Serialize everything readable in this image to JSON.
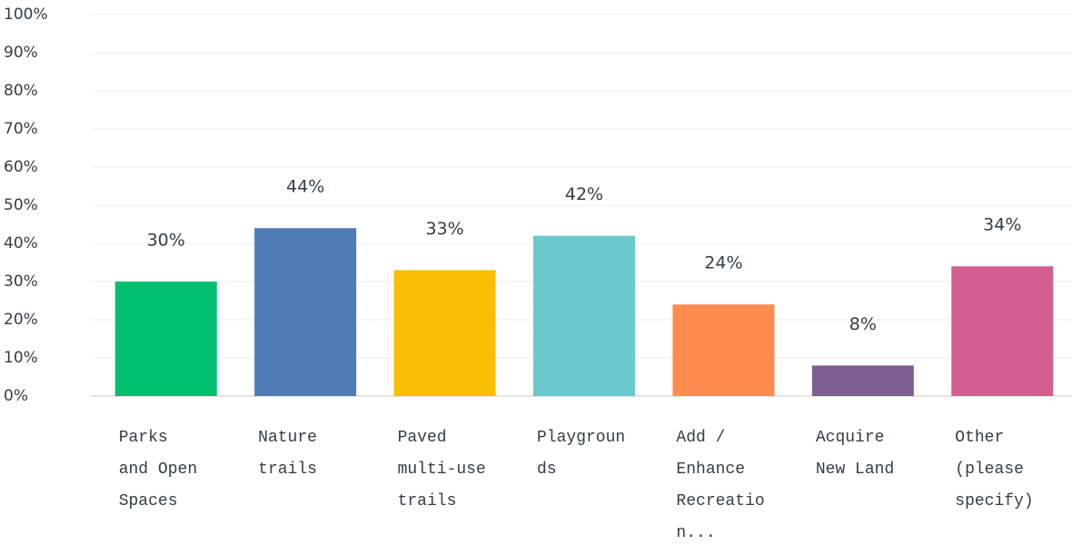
{
  "chart_data": {
    "type": "bar",
    "categories": [
      "Parks\nand Open\nSpaces",
      "Nature\ntrails",
      "Paved\nmulti-use\ntrails",
      "Playgroun\nds",
      "Add /\nEnhance\nRecreatio\nn...",
      "Acquire\nNew Land",
      "Other\n(please\nspecify)"
    ],
    "values": [
      30,
      44,
      33,
      42,
      24,
      8,
      34
    ],
    "value_labels": [
      "30%",
      "44%",
      "33%",
      "42%",
      "24%",
      "8%",
      "34%"
    ],
    "colors": [
      "#00bf6f",
      "#507cb6",
      "#f9be00",
      "#6bc8cd",
      "#ff8b4f",
      "#7f5f92",
      "#d25f90"
    ],
    "ylim": [
      0,
      100
    ],
    "yticks": [
      {
        "value": 0,
        "label": "0%"
      },
      {
        "value": 10,
        "label": "10%"
      },
      {
        "value": 20,
        "label": "20%"
      },
      {
        "value": 30,
        "label": "30%"
      },
      {
        "value": 40,
        "label": "40%"
      },
      {
        "value": 50,
        "label": "50%"
      },
      {
        "value": 60,
        "label": "60%"
      },
      {
        "value": 70,
        "label": "70%"
      },
      {
        "value": 80,
        "label": "80%"
      },
      {
        "value": 90,
        "label": "90%"
      },
      {
        "value": 100,
        "label": "100%"
      }
    ],
    "grid": true
  }
}
